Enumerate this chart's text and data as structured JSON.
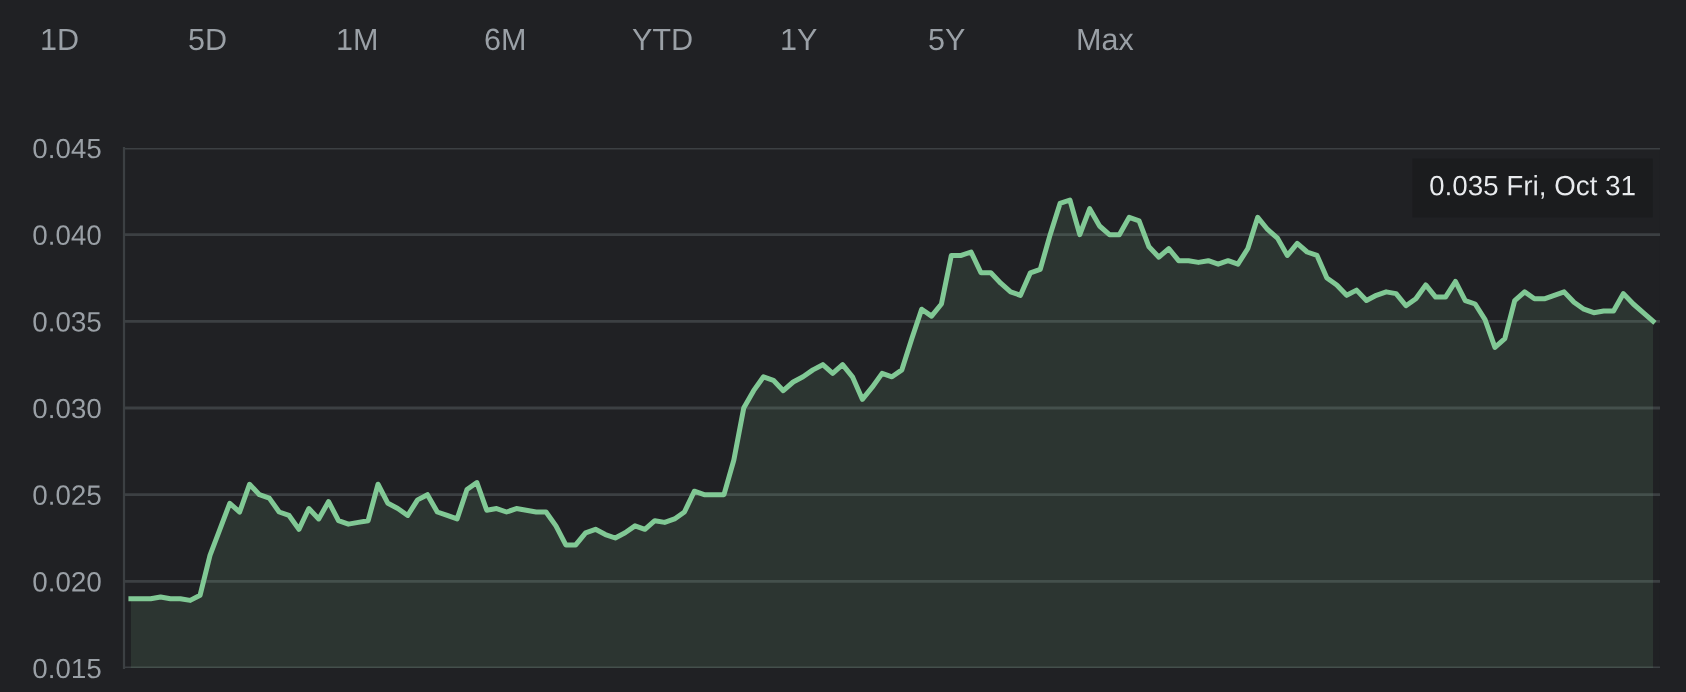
{
  "chart_data": {
    "type": "area",
    "color": "#81c995",
    "grid": "y",
    "legend": false,
    "marker": "none",
    "line_style": "solid",
    "ylim": [
      0.015,
      0.045
    ],
    "yticks": [
      0.015,
      {
        "value": 0.02,
        "label": "0.020"
      },
      0.025,
      {
        "value": 0.03,
        "label": "0.030"
      },
      0.035,
      {
        "value": 0.04,
        "label": "0.040"
      },
      0.045
    ],
    "tick_labels": "y",
    "annotations": [
      "1D",
      "5D",
      "1M",
      "6M",
      "YTD",
      "1Y",
      "5Y",
      "Max",
      "0.035 Fri, Oct 31"
    ],
    "categories": [
      null,
      null,
      null,
      null,
      null,
      null,
      null,
      null,
      null,
      null,
      null,
      null,
      null,
      null,
      null,
      null,
      null,
      null,
      null,
      null,
      null,
      null,
      null,
      null,
      null,
      null,
      null,
      null,
      null,
      null,
      null,
      null,
      null,
      null,
      null,
      null,
      null,
      null,
      null,
      null,
      null,
      null,
      null,
      null,
      null,
      null,
      null,
      null,
      null,
      null,
      null,
      null,
      null,
      null,
      null,
      null,
      null,
      null,
      null,
      null,
      null,
      null,
      null,
      null,
      null,
      null,
      null,
      null,
      null,
      null,
      null,
      null,
      null,
      null,
      null,
      null,
      null,
      null,
      null,
      null,
      null,
      null,
      null,
      null,
      null,
      null,
      null,
      null,
      null,
      null,
      null,
      null,
      null,
      null,
      null,
      null,
      null,
      null,
      null,
      null,
      null,
      null,
      null,
      null,
      null,
      null,
      null,
      null,
      null,
      null,
      null,
      null,
      null,
      null,
      null,
      null,
      null,
      null,
      null,
      null,
      null,
      null,
      null,
      null,
      null,
      null,
      null,
      null,
      null,
      null,
      null,
      null,
      null,
      null,
      null,
      null,
      null,
      null,
      null,
      null,
      null,
      null,
      null,
      null,
      null,
      null,
      null,
      null,
      null,
      null,
      null,
      null,
      null,
      null,
      null
    ],
    "values": [
      0.019,
      0.019,
      0.019,
      0.0191,
      0.019,
      0.019,
      0.0189,
      0.0192,
      0.0215,
      0.023,
      0.0245,
      0.024,
      0.0256,
      0.025,
      0.0248,
      0.024,
      0.0238,
      0.023,
      0.0242,
      0.0236,
      0.0246,
      0.0235,
      0.0233,
      0.0234,
      0.0235,
      0.0256,
      0.0245,
      0.0242,
      0.0238,
      0.0247,
      0.025,
      0.024,
      0.0238,
      0.0236,
      0.0253,
      0.0257,
      0.0241,
      0.0242,
      0.024,
      0.0242,
      0.0241,
      0.024,
      0.024,
      0.0232,
      0.0221,
      0.0221,
      0.0228,
      0.023,
      0.0227,
      0.0225,
      0.0228,
      0.0232,
      0.023,
      0.0235,
      0.0234,
      0.0236,
      0.024,
      0.0252,
      0.025,
      0.025,
      0.025,
      0.027,
      0.03,
      0.031,
      0.0318,
      0.0316,
      0.031,
      0.0315,
      0.0318,
      0.0322,
      0.0325,
      0.032,
      0.0325,
      0.0318,
      0.0305,
      0.0312,
      0.032,
      0.0318,
      0.0322,
      0.034,
      0.0357,
      0.0353,
      0.036,
      0.0388,
      0.0388,
      0.039,
      0.0378,
      0.0378,
      0.0372,
      0.0367,
      0.0365,
      0.0378,
      0.038,
      0.04,
      0.0418,
      0.042,
      0.04,
      0.0415,
      0.0405,
      0.04,
      0.04,
      0.041,
      0.0408,
      0.0393,
      0.0387,
      0.0392,
      0.0385,
      0.0385,
      0.0384,
      0.0385,
      0.0383,
      0.0385,
      0.0383,
      0.0392,
      0.041,
      0.0403,
      0.0398,
      0.0388,
      0.0395,
      0.039,
      0.0388,
      0.0375,
      0.0371,
      0.0365,
      0.0368,
      0.0362,
      0.0365,
      0.0367,
      0.0366,
      0.0359,
      0.0363,
      0.0371,
      0.0364,
      0.0364,
      0.0373,
      0.0362,
      0.036,
      0.0351,
      0.0335,
      0.034,
      0.0362,
      0.0367,
      0.0363,
      0.0363,
      0.0365,
      0.0367,
      0.0361,
      0.0357,
      0.0355,
      0.0356,
      0.0356,
      0.0366,
      0.036,
      0.0355,
      0.035
    ]
  }
}
